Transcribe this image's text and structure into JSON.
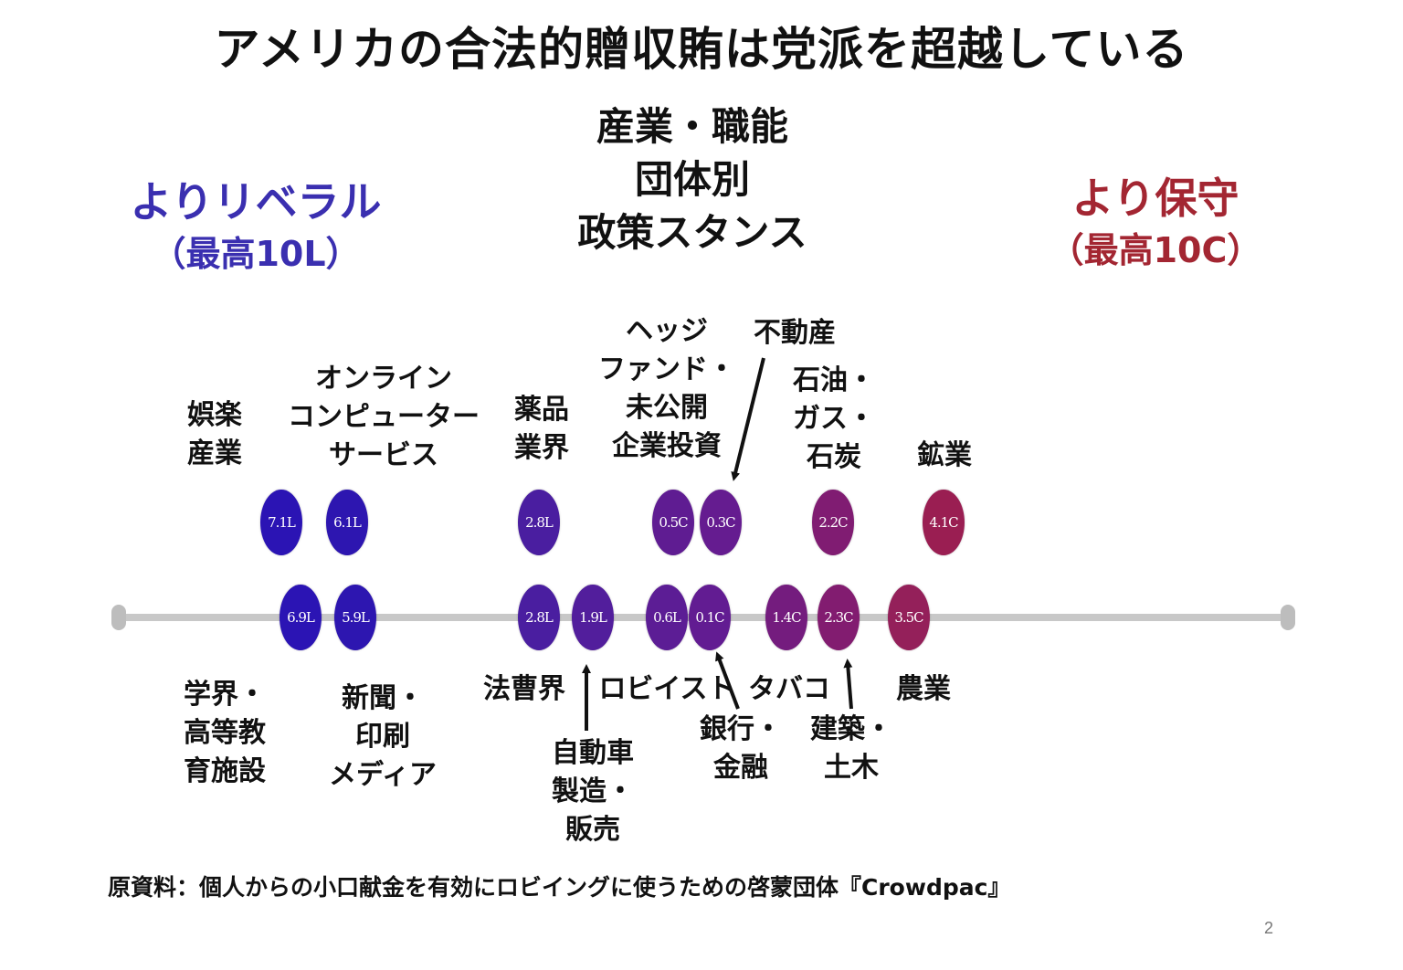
{
  "title": "アメリカの合法的贈収賄は党派を超越している",
  "center_heading": [
    "産業・職能",
    "団体別",
    "政策スタンス"
  ],
  "liberal_label": {
    "main": "よりリベラル",
    "sub": "（最高10L）",
    "color": "#3a2fb0"
  },
  "conservative_label": {
    "main": "より保守",
    "sub": "（最高10C）",
    "color": "#a32632"
  },
  "bubbles_top": [
    {
      "value": "7.1L",
      "color": "#2b14b4"
    },
    {
      "value": "6.1L",
      "color": "#2d16b0"
    },
    {
      "value": "2.8L",
      "color": "#4a1ea0"
    },
    {
      "value": "0.5C",
      "color": "#5f1c92"
    },
    {
      "value": "0.3C",
      "color": "#651c90"
    },
    {
      "value": "2.2C",
      "color": "#801c72"
    },
    {
      "value": "4.1C",
      "color": "#9a1e52"
    }
  ],
  "bubbles_bottom": [
    {
      "value": "6.9L",
      "color": "#2b14b4"
    },
    {
      "value": "5.9L",
      "color": "#2d16b0"
    },
    {
      "value": "2.8L",
      "color": "#4a1ea0"
    },
    {
      "value": "1.9L",
      "color": "#521e9c"
    },
    {
      "value": "0.6L",
      "color": "#5c1d95"
    },
    {
      "value": "0.1C",
      "color": "#621c92"
    },
    {
      "value": "1.4C",
      "color": "#741c7e"
    },
    {
      "value": "2.3C",
      "color": "#821c70"
    },
    {
      "value": "3.5C",
      "color": "#94205a"
    }
  ],
  "labels_top": [
    "娯楽\n産業",
    "オンライン\nコンピューター\nサービス",
    "薬品\n業界",
    "ヘッジ\nファンド・\n未公開\n企業投資",
    "不動産",
    "石油・\nガス・\n石炭",
    "鉱業"
  ],
  "labels_bottom": [
    "学界・\n高等教\n育施設",
    "新聞・\n印刷\nメディア",
    "法曹界",
    "自動車\n製造・\n販売",
    "ロビイスト",
    "銀行・\n金融",
    "タバコ",
    "建築・\n土木",
    "農業"
  ],
  "source": "原資料：個人からの小口献金を有効にロビイングに使うための啓蒙団体『Crowdpac』",
  "page_number": "2"
}
